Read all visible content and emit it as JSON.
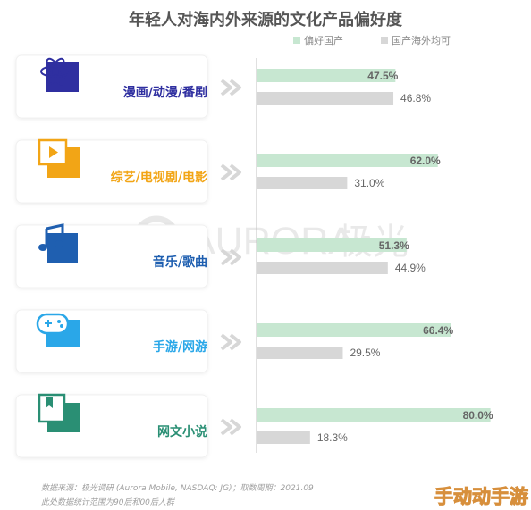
{
  "chart_data": {
    "type": "bar",
    "title": "年轻人对海内外来源的文化产品偏好度",
    "categories": [
      "漫画/动漫/番剧",
      "综艺/电视剧/电影",
      "音乐/歌曲",
      "手游/网游",
      "网文小说"
    ],
    "icons": [
      "atom-icon",
      "video-play-icon",
      "music-note-icon",
      "gamepad-icon",
      "book-icon"
    ],
    "series": [
      {
        "name": "偏好国产",
        "values": [
          47.5,
          62.0,
          51.3,
          66.4,
          80.0
        ],
        "color": "#c7e7d1"
      },
      {
        "name": "国产海外均可",
        "values": [
          46.8,
          31.0,
          44.9,
          29.5,
          18.3
        ],
        "color": "#d7d7d7"
      }
    ],
    "value_labels": [
      [
        "47.5%",
        "62.0%",
        "51.3%",
        "66.4%",
        "80.0%"
      ],
      [
        "46.8%",
        "31.0%",
        "44.9%",
        "29.5%",
        "18.3%"
      ]
    ],
    "category_colors": [
      "#2f2fa0",
      "#f2a516",
      "#1f5fb0",
      "#2aa7e8",
      "#2a8f74"
    ],
    "legend_position": "top-right",
    "ylim": [
      0,
      100
    ]
  },
  "source_note": "数据来源：极光调研 (Aurora Mobile, NASDAQ: JG)；取数周期：2021.09",
  "scope_note": "此处数据统计范围为90后和00后人群",
  "watermark": {
    "brand": "AURORA",
    "brand_cn": "极光"
  },
  "corner_watermark": "手动动手游"
}
